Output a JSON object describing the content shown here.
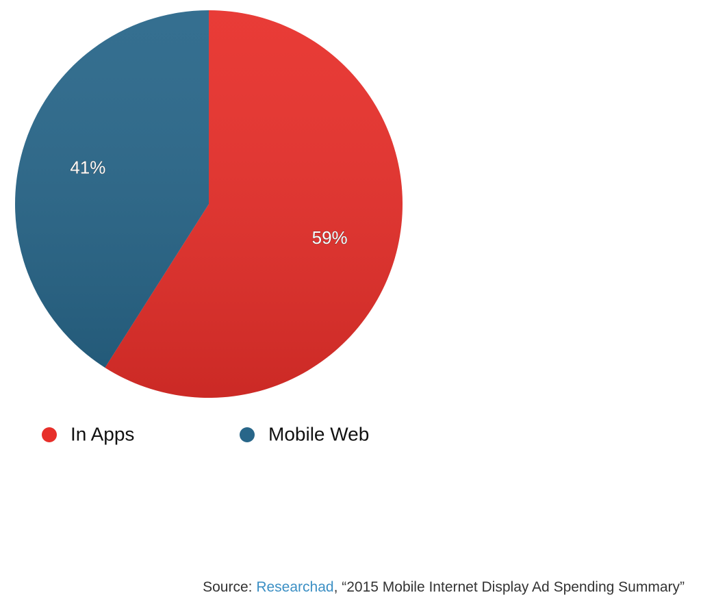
{
  "chart_data": {
    "type": "pie",
    "categories": [
      "In Apps",
      "Mobile Web"
    ],
    "values": [
      59,
      41
    ],
    "value_labels": [
      "59%",
      "41%"
    ],
    "colors": [
      "#e72f2a",
      "#286689"
    ],
    "legend": "bottom-left",
    "source": [
      "Source:",
      "Researchad",
      ", “2015 Mobile Internet Display Ad Spending Summary”"
    ],
    "source_link_color": "#3b8fc4"
  }
}
